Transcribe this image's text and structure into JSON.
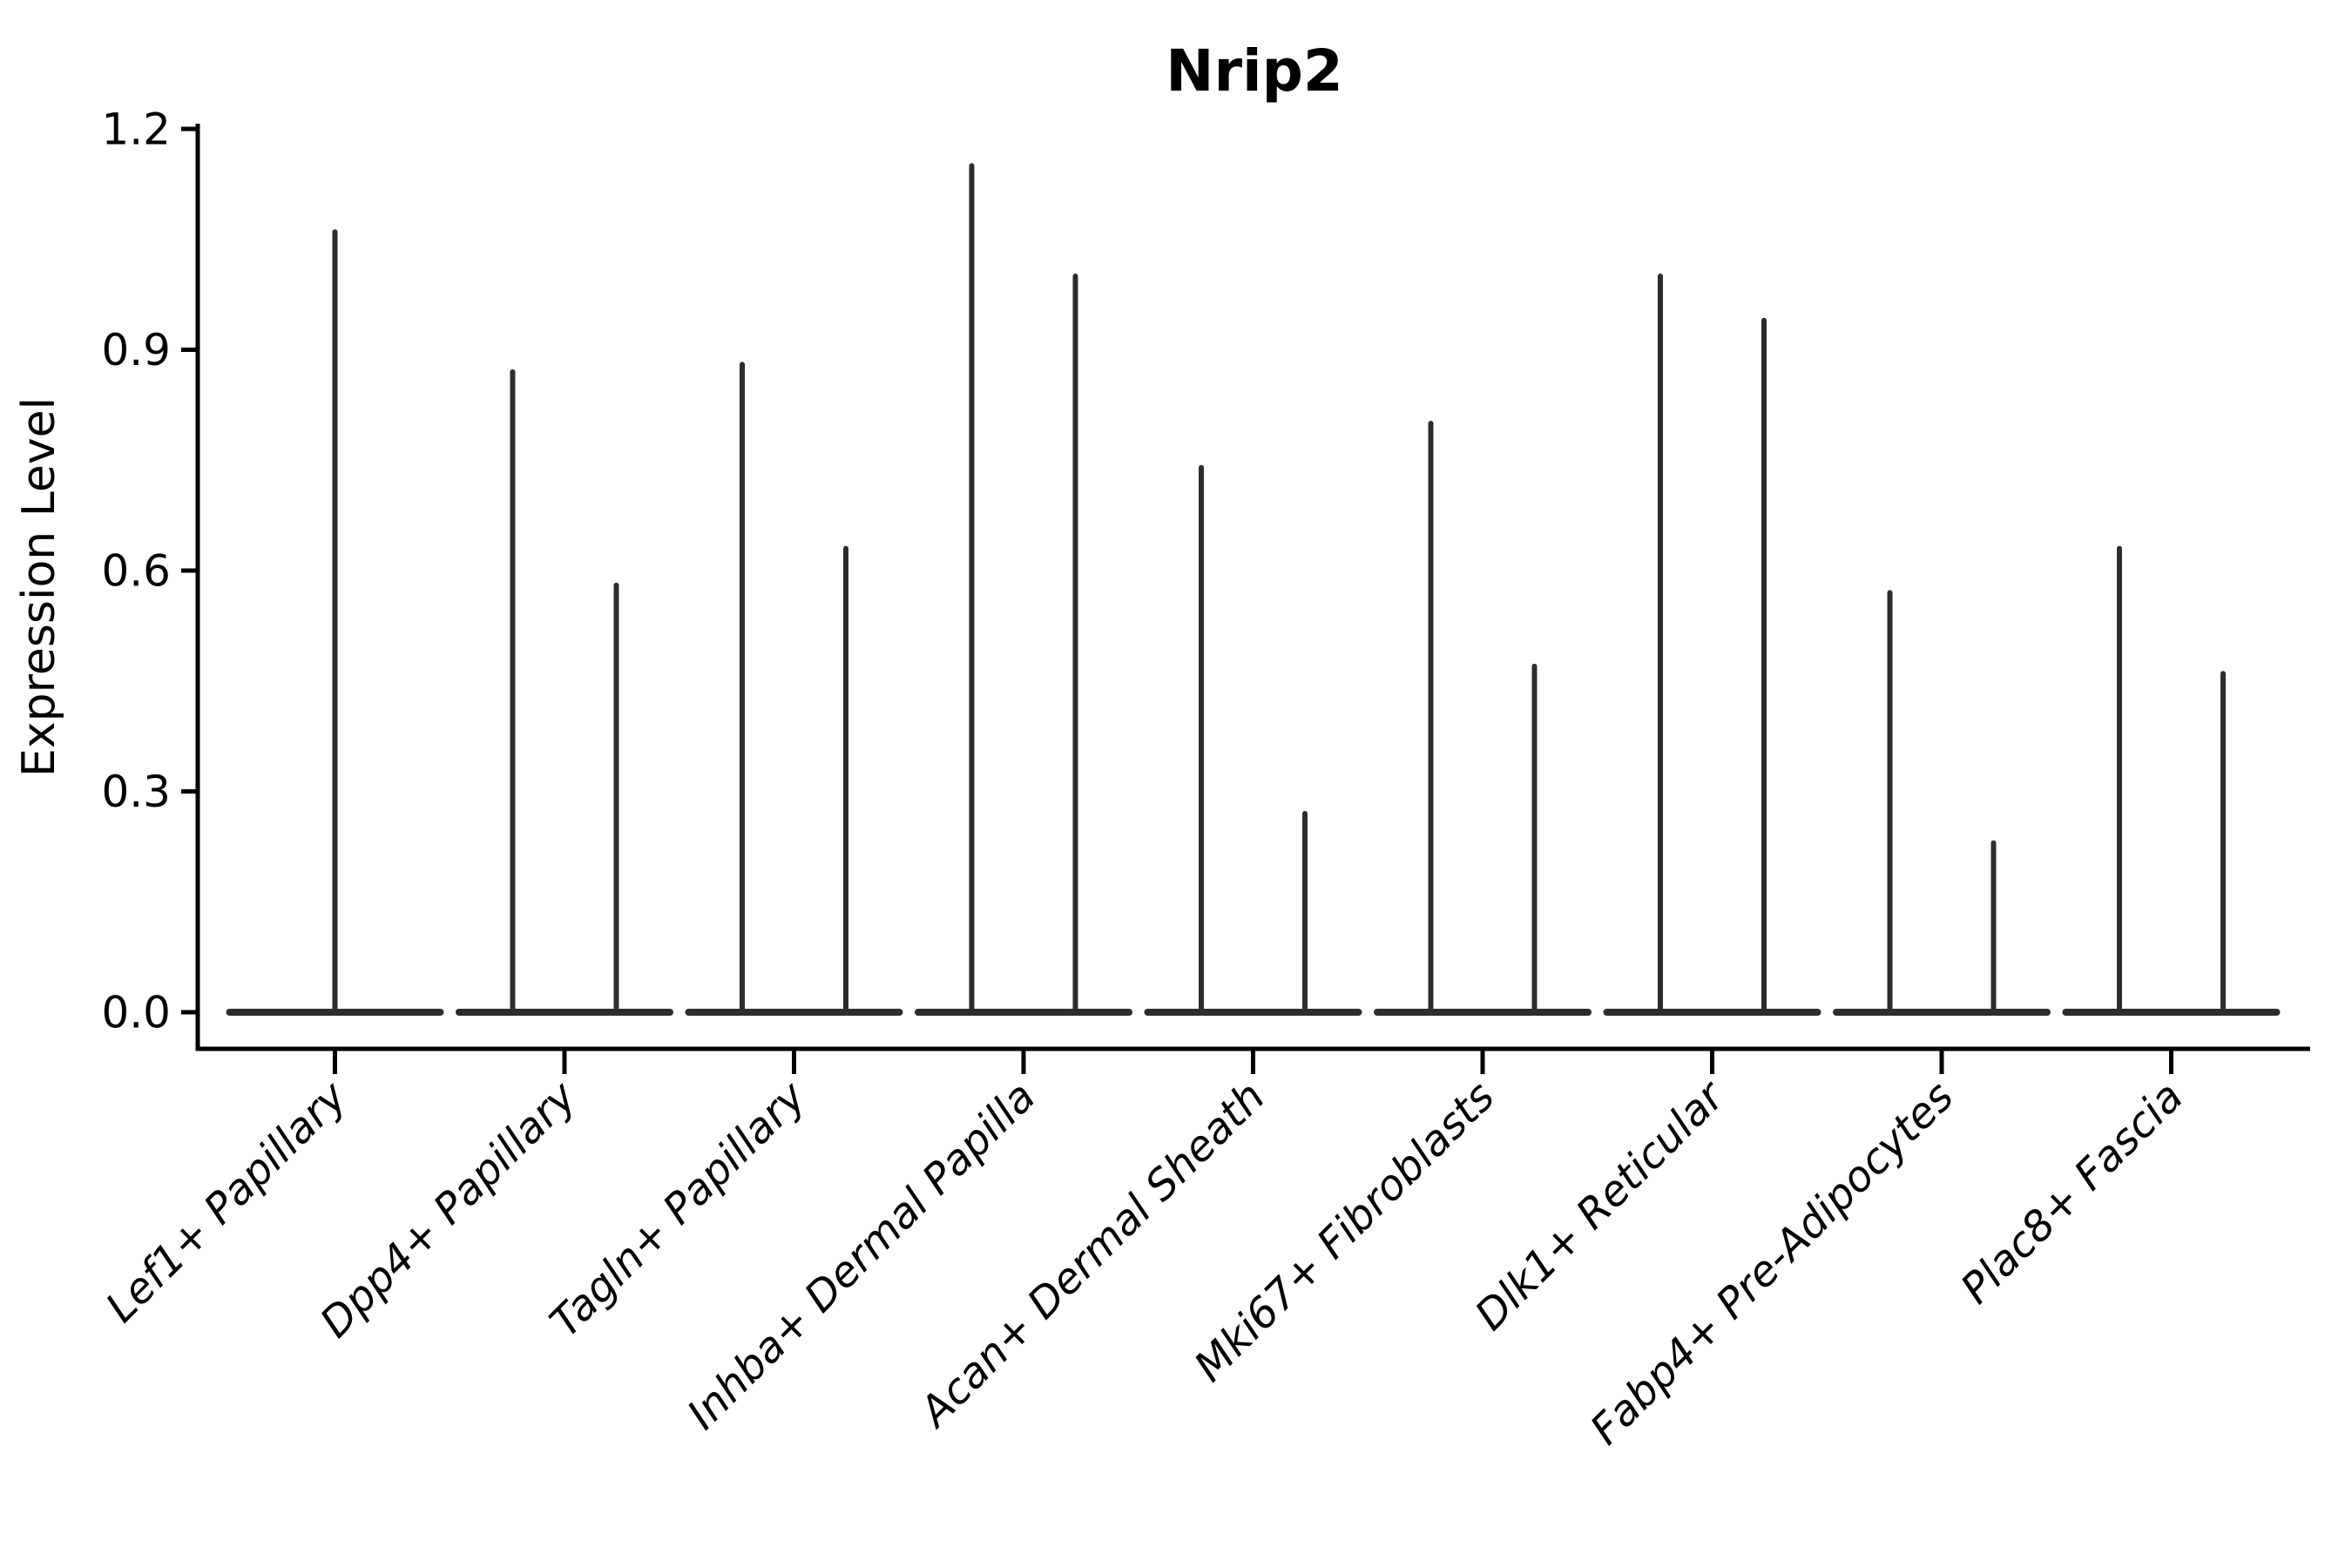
{
  "figure": {
    "title": "Nrip2",
    "y_axis_label": "Expression Level"
  },
  "chart_data": {
    "type": "violin",
    "title": "Nrip2",
    "ylabel": "Expression Level",
    "xlabel": "",
    "ylim": [
      -0.05,
      1.21
    ],
    "yticks": [
      0.0,
      0.3,
      0.6,
      0.9,
      1.2
    ],
    "ytick_labels": [
      "0.0",
      "0.3",
      "0.6",
      "0.9",
      "1.2"
    ],
    "grid": false,
    "legend": "none",
    "background": "#ffffff",
    "categories": [
      "Lef1+ Papillary",
      "Dpp4+ Papillary",
      "Tagln+ Papillary",
      "Inhba+ Dermal Papilla",
      "Acan+ Dermal Sheath",
      "Mki67+ Fibroblasts",
      "Dlk1+ Reticular",
      "Fabp4+ Pre-Adipocytes",
      "Plac8+ Fascia"
    ],
    "baseline_value": 0.0,
    "spike_maxima": [
      [
        1.06
      ],
      [
        0.87,
        0.58
      ],
      [
        0.88,
        0.63
      ],
      [
        1.15,
        1.0
      ],
      [
        0.74,
        0.27
      ],
      [
        0.8,
        0.47
      ],
      [
        1.0,
        0.94
      ],
      [
        0.57,
        0.23
      ],
      [
        0.63,
        0.46
      ]
    ],
    "violins_per_category": [
      1,
      2,
      2,
      2,
      2,
      2,
      2,
      2,
      2
    ],
    "shape_note": "Each violin collapses to a flat horizontal base at expression 0 with a single thin vertical tail rising to its maximum value; Lef1+ Papillary has one centered violin, all other categories have two side-by-side violins.",
    "colors": {
      "violin_line": "#2d2d2d",
      "axis": "#000000",
      "text": "#000000"
    },
    "x_tick_label_style": "italic, rotated 45 degrees, right-anchored",
    "y_tick_label_style": "plain"
  }
}
